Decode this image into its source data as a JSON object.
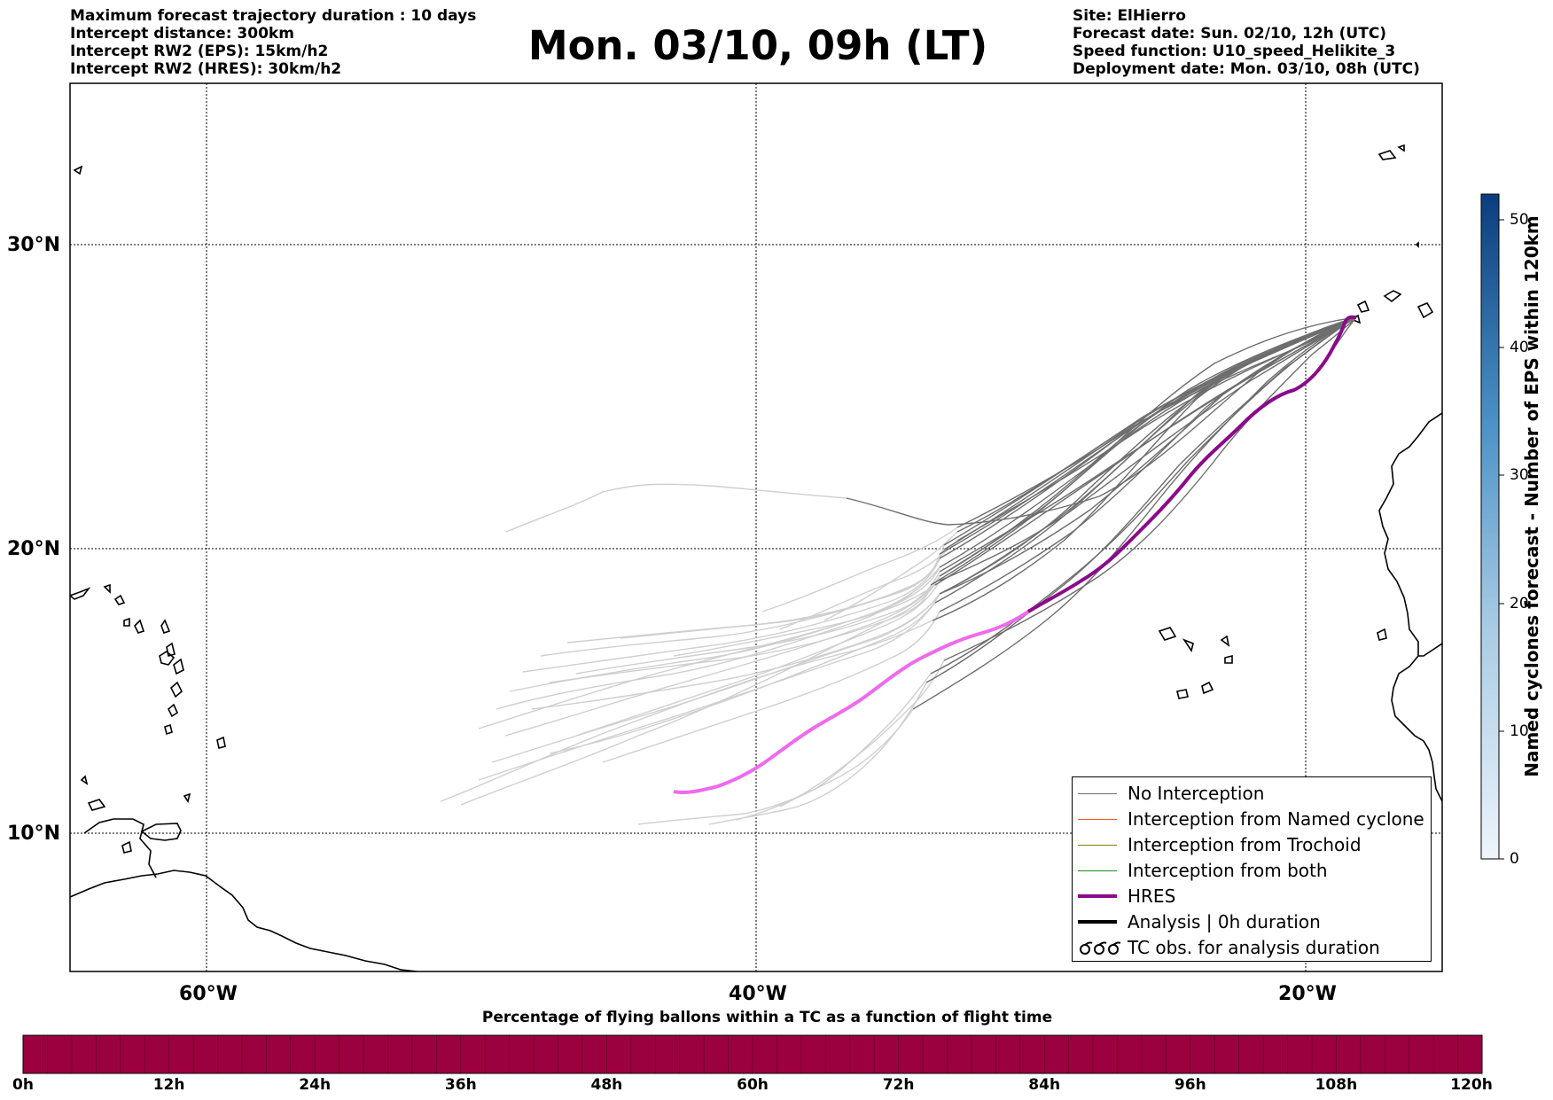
{
  "header": {
    "left_lines": [
      "Maximum forecast trajectory duration : 10 days",
      "Intercept distance: 300km",
      "Intercept RW2 (EPS):  15km/h2",
      "Intercept RW2 (HRES): 30km/h2"
    ],
    "title": "Mon. 03/10, 09h (LT)",
    "right_lines": [
      "Site: ElHierro",
      "Forecast date: Sun. 02/10, 12h (UTC)",
      "Speed function: U10_speed_Helikite_3",
      "Deployment date: Mon. 03/10, 08h (UTC)"
    ]
  },
  "map": {
    "lon_range": [
      -65,
      15
    ],
    "lat_range": [
      5,
      34
    ],
    "lat_labels": [
      "30°N",
      "20°N",
      "10°N"
    ],
    "lon_labels": [
      "60°W",
      "40°W",
      "20°W"
    ],
    "colors": {
      "no_interception": "#6e6e6e",
      "no_interception_light": "#cfcfcf",
      "hres": "#8b0a8b",
      "hres_light": "#ee6aee",
      "named_cyclone": "#ff5a1e",
      "trochoid": "#808000",
      "both": "#1a8c1a",
      "analysis": "#000000"
    }
  },
  "legend": [
    {
      "label": "No Interception",
      "icon": "line",
      "color": "#6e6e6e",
      "width": 1.5
    },
    {
      "label": "Interception from Named cyclone",
      "icon": "line",
      "color": "#ff5a1e",
      "width": 1.5
    },
    {
      "label": "Interception from Trochoid",
      "icon": "line",
      "color": "#808000",
      "width": 1.5
    },
    {
      "label": "Interception from both",
      "icon": "line",
      "color": "#1a8c1a",
      "width": 1.5
    },
    {
      "label": "HRES",
      "icon": "line",
      "color": "#8b0a8b",
      "width": 4
    },
    {
      "label": "Analysis | 0h duration",
      "icon": "line",
      "color": "#000000",
      "width": 4
    },
    {
      "label": "TC obs. for analysis duration",
      "icon": "tc-symbol-icon",
      "color": "#000000",
      "width": 0
    }
  ],
  "colorbar_vertical": {
    "label": "Named cyclones forecast - Number of EPS within 120km",
    "ticks": [
      "0",
      "10",
      "20",
      "30",
      "40",
      "50"
    ],
    "range": [
      0,
      52
    ],
    "color_low": "#e8f0fa",
    "color_high": "#0b3d7e"
  },
  "colorbar_horizontal": {
    "title": "Percentage of flying ballons within a TC as a function of flight time",
    "ticks": [
      "0h",
      "12h",
      "24h",
      "36h",
      "48h",
      "60h",
      "72h",
      "84h",
      "96h",
      "108h",
      "120h"
    ],
    "segments": 60,
    "color": "#9b003f"
  }
}
